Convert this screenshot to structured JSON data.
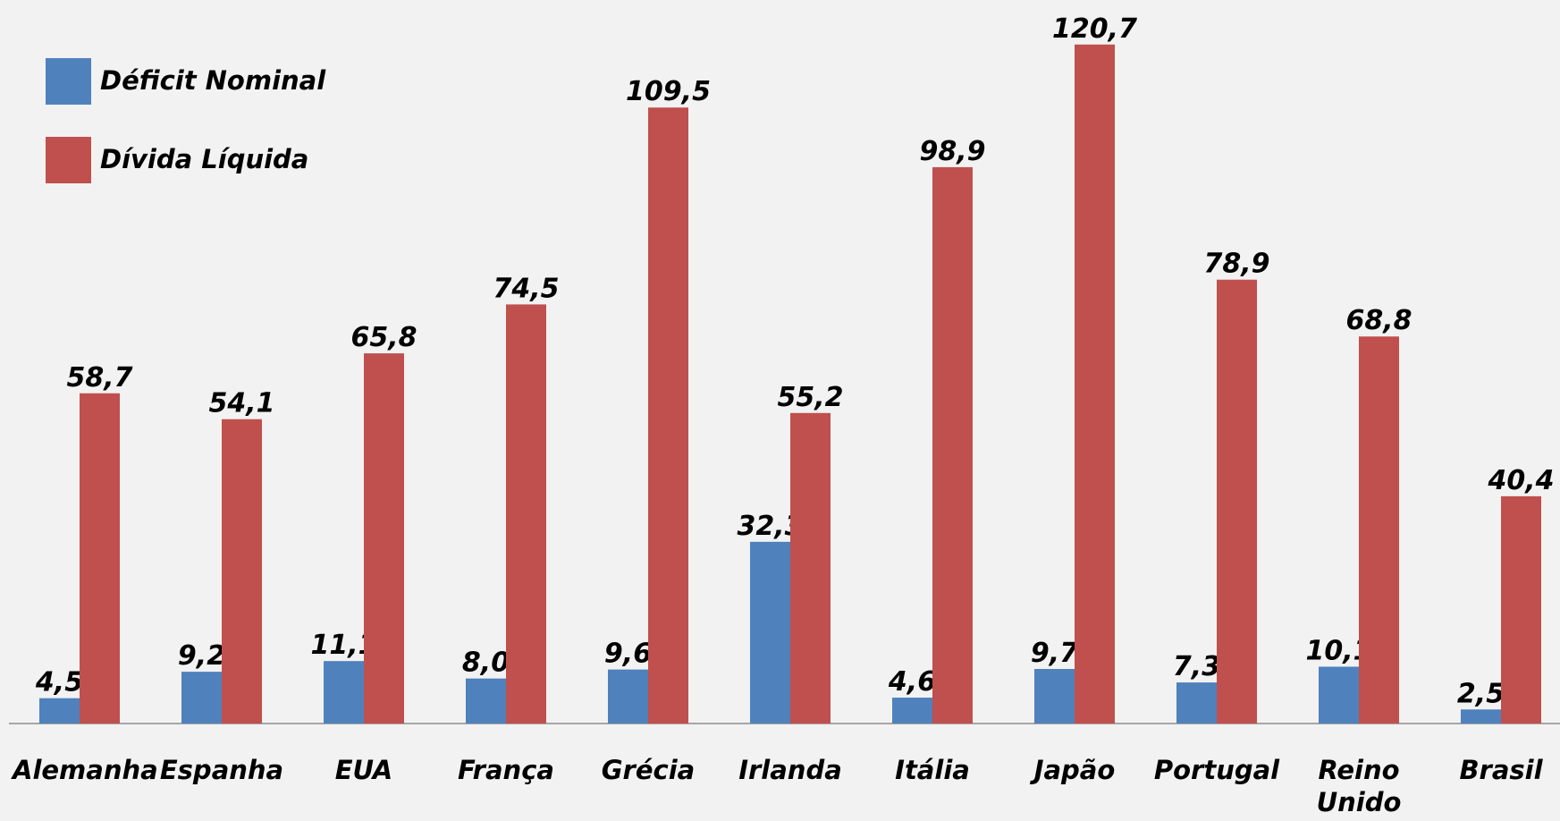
{
  "chart_data": {
    "type": "bar",
    "categories": [
      "Alemanha",
      "Espanha",
      "EUA",
      "França",
      "Grécia",
      "Irlanda",
      "Itália",
      "Japão",
      "Portugal",
      "Reino Unido",
      "Brasil"
    ],
    "series": [
      {
        "name": "Déficit Nominal",
        "color": "#4f81bd",
        "values": [
          4.5,
          9.2,
          11.1,
          8.0,
          9.6,
          32.3,
          4.6,
          9.7,
          7.3,
          10.1,
          2.5
        ],
        "value_labels": [
          "4,5",
          "9,2",
          "11,1",
          "8,0",
          "9,6",
          "32,3",
          "4,6",
          "9,7",
          "7,3",
          "10,1",
          "2,5"
        ]
      },
      {
        "name": "Dívida Líquida",
        "color": "#c0504d",
        "values": [
          58.7,
          54.1,
          65.8,
          74.5,
          109.5,
          55.2,
          98.9,
          120.7,
          78.9,
          68.8,
          40.4
        ],
        "value_labels": [
          "58,7",
          "54,1",
          "65,8",
          "74,5",
          "109,5",
          "55,2",
          "98,9",
          "120,7",
          "78,9",
          "68,8",
          "40,4"
        ]
      }
    ],
    "legend": "top-left"
  }
}
